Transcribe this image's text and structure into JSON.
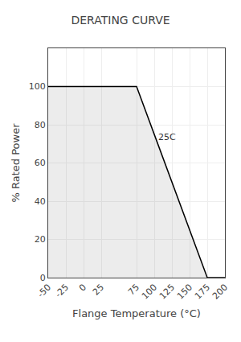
{
  "chart_data": {
    "type": "area",
    "title": "DERATING CURVE",
    "xlabel": "Flange Temperature (°C)",
    "ylabel": "% Rated Power",
    "x": [
      -50,
      -25,
      0,
      25,
      75,
      100,
      125,
      150,
      175,
      200
    ],
    "values": [
      100,
      100,
      100,
      100,
      100,
      75,
      50,
      25,
      0,
      0
    ],
    "color": "#000000",
    "xlim": [
      -50,
      200
    ],
    "xticks": [
      -50,
      -25,
      0,
      25,
      75,
      100,
      125,
      150,
      175,
      200
    ],
    "ylim": [
      0,
      120
    ],
    "yticks": [
      0,
      20,
      40,
      60,
      80,
      100
    ],
    "grid": true,
    "annotations": [
      {
        "text": "25C",
        "x": 103,
        "y": 70
      }
    ]
  }
}
